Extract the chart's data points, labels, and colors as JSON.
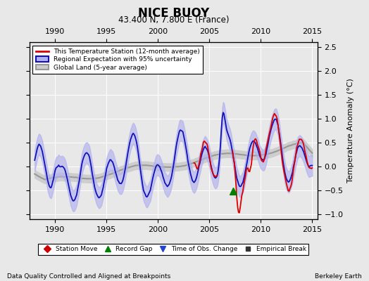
{
  "title": "NICE BUOY",
  "subtitle": "43.400 N, 7.800 E (France)",
  "xlabel_left": "Data Quality Controlled and Aligned at Breakpoints",
  "xlabel_right": "Berkeley Earth",
  "ylabel": "Temperature Anomaly (°C)",
  "xlim": [
    1987.5,
    2015.5
  ],
  "ylim": [
    -1.1,
    2.6
  ],
  "yticks": [
    -1,
    -0.5,
    0,
    0.5,
    1,
    1.5,
    2,
    2.5
  ],
  "xticks": [
    1990,
    1995,
    2000,
    2005,
    2010,
    2015
  ],
  "bg_color": "#e8e8e8",
  "plot_bg_color": "#e8e8e8",
  "red_line_color": "#dd0000",
  "blue_line_color": "#1111bb",
  "blue_fill_color": "#b0b0ee",
  "gray_line_color": "#999999",
  "gray_fill_color": "#cccccc",
  "record_gap_x": 2007.3,
  "record_gap_y": -0.52,
  "station_start_year": 2003.5,
  "station_gap_start": 2005.8,
  "station_gap_end": 2007.2,
  "legend_entries": [
    "This Temperature Station (12-month average)",
    "Regional Expectation with 95% uncertainty",
    "Global Land (5-year average)"
  ],
  "marker_legend_entries": [
    "Station Move",
    "Record Gap",
    "Time of Obs. Change",
    "Empirical Break"
  ]
}
